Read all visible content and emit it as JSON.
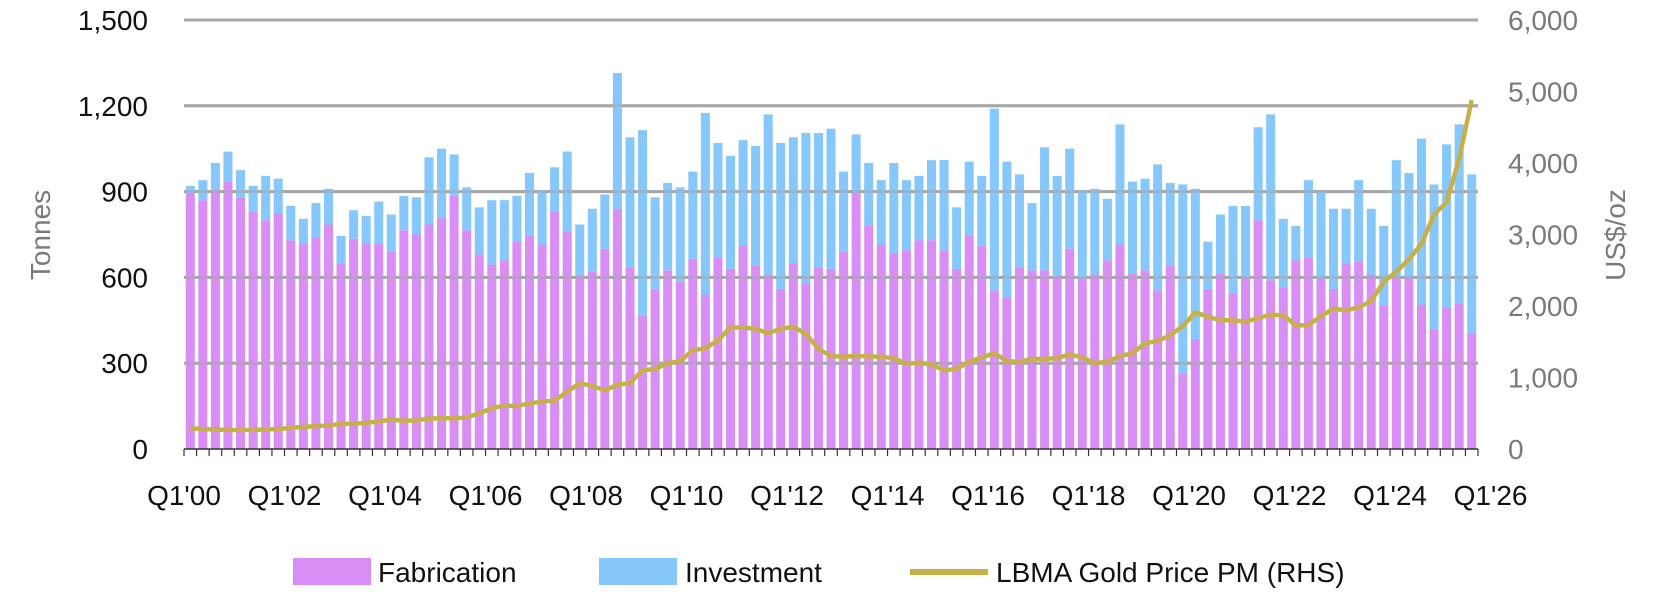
{
  "chart_data": {
    "type": "bar",
    "stacked": true,
    "xlabel": "",
    "ylabel": "Tonnes",
    "y2label": "US$/oz",
    "ylim": [
      0,
      1500
    ],
    "y2lim": [
      0,
      6000
    ],
    "yticks": [
      "0",
      "300",
      "600",
      "900",
      "1,200",
      "1,500"
    ],
    "yticks_values": [
      0,
      300,
      600,
      900,
      1200,
      1500
    ],
    "y2ticks": [
      "0",
      "1,000",
      "2,000",
      "3,000",
      "4,000",
      "5,000",
      "6,000"
    ],
    "y2ticks_values": [
      0,
      1000,
      2000,
      3000,
      4000,
      5000,
      6000
    ],
    "xtick_labels": [
      "Q1'00",
      "Q1'02",
      "Q1'04",
      "Q1'06",
      "Q1'08",
      "Q1'10",
      "Q1'12",
      "Q1'14",
      "Q1'16",
      "Q1'18",
      "Q1'20",
      "Q1'22",
      "Q1'24",
      "Q1'26"
    ],
    "grid": true,
    "legend_position": "bottom",
    "colors": {
      "fabrication": "#d98ef5",
      "investment": "#86c8fb",
      "price": "#c8b048",
      "grid": "#a6a6a6"
    },
    "series": [
      {
        "name": "Fabrication",
        "kind": "bar",
        "axis": "left",
        "values": [
          895,
          870,
          905,
          935,
          880,
          830,
          800,
          825,
          730,
          720,
          740,
          785,
          650,
          735,
          720,
          720,
          690,
          765,
          750,
          785,
          810,
          885,
          765,
          680,
          645,
          660,
          725,
          745,
          715,
          830,
          760,
          605,
          620,
          700,
          840,
          635,
          465,
          560,
          625,
          585,
          665,
          540,
          670,
          630,
          710,
          640,
          610,
          560,
          650,
          580,
          635,
          630,
          690,
          895,
          780,
          715,
          685,
          695,
          730,
          730,
          695,
          630,
          745,
          710,
          555,
          530,
          635,
          625,
          625,
          605,
          700,
          595,
          610,
          660,
          715,
          615,
          625,
          555,
          640,
          265,
          385,
          560,
          615,
          545,
          600,
          800,
          590,
          565,
          660,
          670,
          595,
          560,
          650,
          655,
          610,
          500,
          600,
          600,
          505,
          420,
          495,
          510,
          405
        ]
      },
      {
        "name": "Investment",
        "kind": "bar",
        "axis": "left",
        "values": [
          25,
          70,
          95,
          105,
          95,
          90,
          155,
          120,
          120,
          85,
          120,
          125,
          95,
          100,
          95,
          145,
          130,
          120,
          130,
          235,
          240,
          145,
          150,
          165,
          225,
          210,
          160,
          220,
          190,
          155,
          280,
          180,
          220,
          190,
          475,
          455,
          650,
          320,
          305,
          330,
          305,
          635,
          400,
          395,
          370,
          420,
          560,
          510,
          440,
          525,
          470,
          490,
          280,
          205,
          220,
          225,
          315,
          245,
          225,
          280,
          315,
          215,
          260,
          245,
          635,
          475,
          325,
          235,
          430,
          350,
          350,
          310,
          300,
          215,
          420,
          320,
          320,
          440,
          290,
          660,
          525,
          165,
          205,
          305,
          250,
          325,
          580,
          240,
          120,
          270,
          305,
          280,
          190,
          285,
          230,
          280,
          410,
          365,
          580,
          505,
          570,
          625,
          555
        ]
      },
      {
        "name": "LBMA Gold Price PM (RHS)",
        "kind": "line",
        "axis": "right",
        "values": [
          290,
          278,
          273,
          265,
          266,
          268,
          272,
          280,
          295,
          310,
          320,
          330,
          350,
          355,
          365,
          385,
          410,
          395,
          400,
          425,
          430,
          430,
          440,
          500,
          570,
          610,
          600,
          640,
          660,
          680,
          800,
          920,
          880,
          820,
          900,
          920,
          1100,
          1120,
          1200,
          1230,
          1380,
          1410,
          1520,
          1700,
          1700,
          1680,
          1620,
          1680,
          1710,
          1610,
          1400,
          1300,
          1290,
          1300,
          1295,
          1290,
          1270,
          1190,
          1210,
          1180,
          1100,
          1120,
          1220,
          1280,
          1340,
          1230,
          1220,
          1260,
          1260,
          1270,
          1325,
          1280,
          1200,
          1220,
          1300,
          1340,
          1480,
          1510,
          1590,
          1720,
          1910,
          1850,
          1800,
          1800,
          1780,
          1830,
          1880,
          1870,
          1730,
          1730,
          1860,
          1960,
          1940,
          1980,
          2070,
          2340,
          2480,
          2650,
          2870,
          3280,
          3450,
          4060,
          4880
        ]
      }
    ]
  },
  "legend": {
    "fabrication": "Fabrication",
    "investment": "Investment",
    "price": "LBMA Gold Price PM (RHS)"
  }
}
